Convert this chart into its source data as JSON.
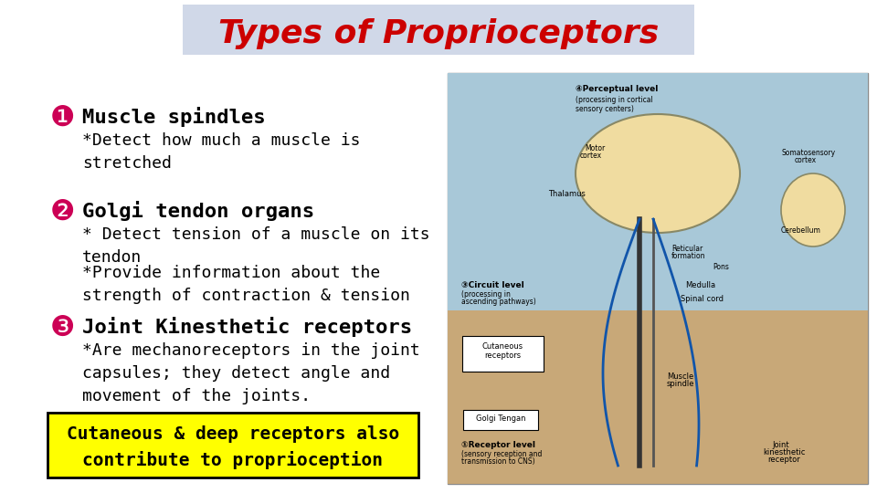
{
  "title": "Types of Proprioceptors",
  "title_color": "#CC0000",
  "title_bg_color": "#D0D8E8",
  "bg_color": "#FFFFFF",
  "bullet1_icon": "❶",
  "bullet2_icon": "❷",
  "bullet3_icon": "❸",
  "bullet_icon_color": "#CC0055",
  "heading_color": "#000000",
  "heading1": "Muscle spindles",
  "text1": "*Detect how much a muscle is\nstretched",
  "heading2": "Golgi tendon organs",
  "text2a": "* Detect tension of a muscle on its\ntendon",
  "text2b": "*Provide information about the\nstrength of contraction & tension",
  "heading3": "Joint Kinesthetic receptors",
  "text3": "*Are mechanoreceptors in the joint\ncapsules; they detect angle and\nmovement of the joints.",
  "footer_text": "Cutaneous & deep receptors also\ncontribute to proprioception",
  "footer_bg": "#FFFF00",
  "footer_border": "#000000",
  "star_color": "#FF00AA",
  "body_text_color": "#000000",
  "font_family": "monospace"
}
